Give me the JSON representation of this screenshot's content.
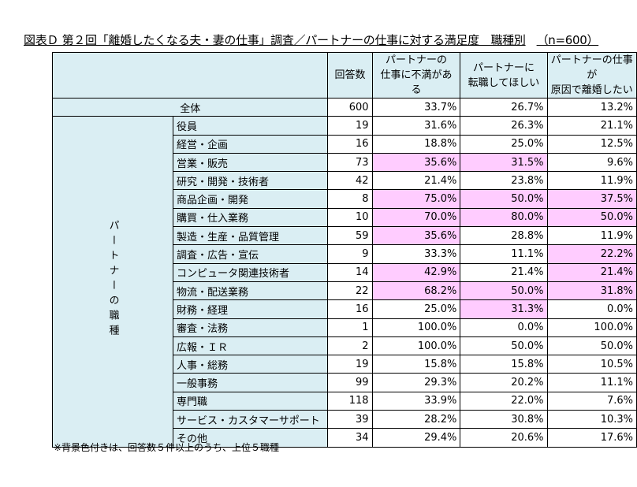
{
  "title": "図表Ｄ 第２回「離婚したくなる夫・妻の仕事」調査／パートナーの仕事に対する満足度　職種別",
  "sample": "（n=600）",
  "columns": {
    "count": "回答数",
    "c1": [
      "パートナーの",
      "仕事に不満がある"
    ],
    "c2": [
      "パートナーに",
      "転職してほしい"
    ],
    "c3": [
      "パートナーの仕事が",
      "原因で離婚したい"
    ]
  },
  "group_label": "パートナーの職種",
  "note": "※背景色付きは、回答数５件以上のうち、上位５職種",
  "highlight_color": "#ffccff",
  "header_color": "#daeef3",
  "chart_data": {
    "type": "table",
    "total": {
      "label": "全体",
      "count": 600,
      "values": [
        "33.7%",
        "26.7%",
        "13.2%"
      ]
    },
    "rows": [
      {
        "label": "役員",
        "count": 19,
        "values": [
          "31.6%",
          "26.3%",
          "21.1%"
        ],
        "hl": [
          false,
          false,
          false
        ]
      },
      {
        "label": "経営・企画",
        "count": 16,
        "values": [
          "18.8%",
          "25.0%",
          "12.5%"
        ],
        "hl": [
          false,
          false,
          false
        ]
      },
      {
        "label": "営業・販売",
        "count": 73,
        "values": [
          "35.6%",
          "31.5%",
          "9.6%"
        ],
        "hl": [
          true,
          true,
          false
        ]
      },
      {
        "label": "研究・開発・技術者",
        "count": 42,
        "values": [
          "21.4%",
          "23.8%",
          "11.9%"
        ],
        "hl": [
          false,
          false,
          false
        ]
      },
      {
        "label": "商品企画・開発",
        "count": 8,
        "values": [
          "75.0%",
          "50.0%",
          "37.5%"
        ],
        "hl": [
          true,
          true,
          true
        ]
      },
      {
        "label": "購買・仕入業務",
        "count": 10,
        "values": [
          "70.0%",
          "80.0%",
          "50.0%"
        ],
        "hl": [
          true,
          true,
          true
        ]
      },
      {
        "label": "製造・生産・品質管理",
        "count": 59,
        "values": [
          "35.6%",
          "28.8%",
          "11.9%"
        ],
        "hl": [
          true,
          false,
          false
        ]
      },
      {
        "label": "調査・広告・宣伝",
        "count": 9,
        "values": [
          "33.3%",
          "11.1%",
          "22.2%"
        ],
        "hl": [
          false,
          false,
          true
        ]
      },
      {
        "label": "コンピュータ関連技術者",
        "count": 14,
        "values": [
          "42.9%",
          "21.4%",
          "21.4%"
        ],
        "hl": [
          true,
          false,
          true
        ]
      },
      {
        "label": "物流・配送業務",
        "count": 22,
        "values": [
          "68.2%",
          "50.0%",
          "31.8%"
        ],
        "hl": [
          true,
          true,
          true
        ]
      },
      {
        "label": "財務・経理",
        "count": 16,
        "values": [
          "25.0%",
          "31.3%",
          "0.0%"
        ],
        "hl": [
          false,
          true,
          false
        ]
      },
      {
        "label": "審査・法務",
        "count": 1,
        "values": [
          "100.0%",
          "0.0%",
          "100.0%"
        ],
        "hl": [
          false,
          false,
          false
        ]
      },
      {
        "label": "広報・ＩＲ",
        "count": 2,
        "values": [
          "100.0%",
          "50.0%",
          "50.0%"
        ],
        "hl": [
          false,
          false,
          false
        ]
      },
      {
        "label": "人事・総務",
        "count": 19,
        "values": [
          "15.8%",
          "15.8%",
          "10.5%"
        ],
        "hl": [
          false,
          false,
          false
        ]
      },
      {
        "label": "一般事務",
        "count": 99,
        "values": [
          "29.3%",
          "20.2%",
          "11.1%"
        ],
        "hl": [
          false,
          false,
          false
        ]
      },
      {
        "label": "専門職",
        "count": 118,
        "values": [
          "33.9%",
          "22.0%",
          "7.6%"
        ],
        "hl": [
          false,
          false,
          false
        ]
      },
      {
        "label": "サービス・カスタマーサポート",
        "count": 39,
        "values": [
          "28.2%",
          "30.8%",
          "10.3%"
        ],
        "hl": [
          false,
          false,
          false
        ]
      },
      {
        "label": "その他",
        "count": 34,
        "values": [
          "29.4%",
          "20.6%",
          "17.6%"
        ],
        "hl": [
          false,
          false,
          false
        ]
      }
    ]
  }
}
